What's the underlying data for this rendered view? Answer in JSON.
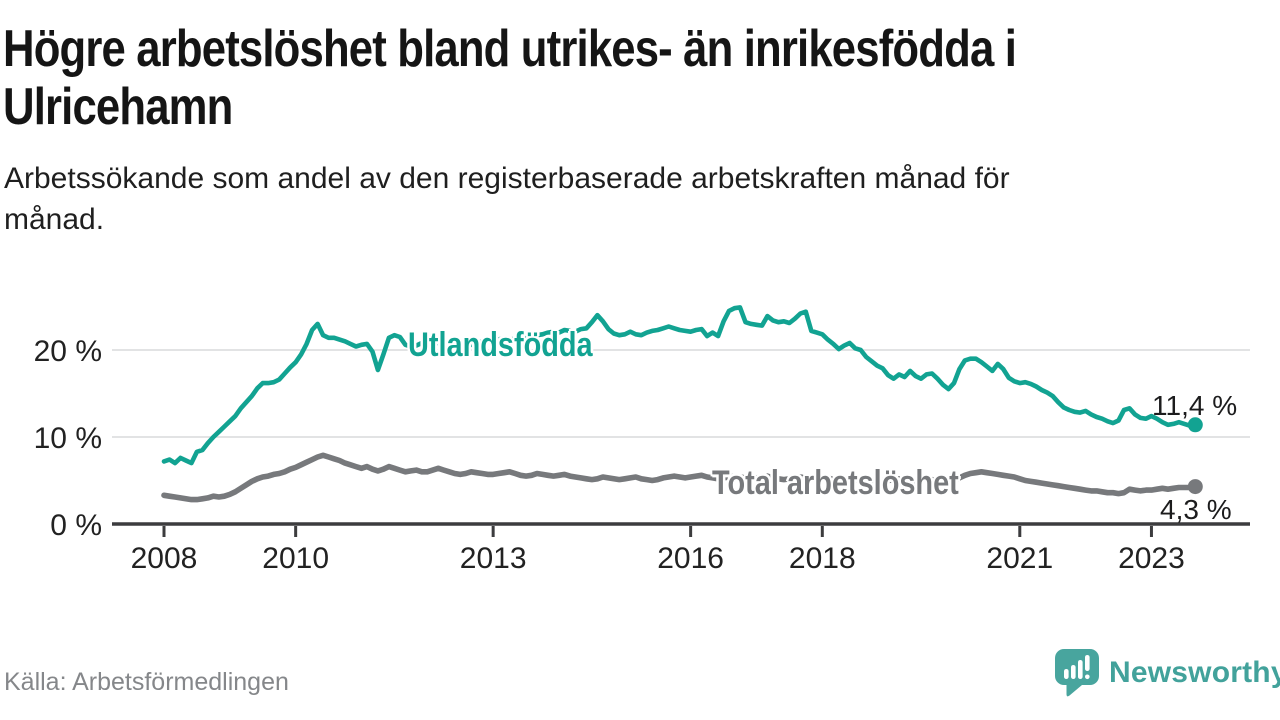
{
  "header": {
    "title_line1": "Högre arbetslöshet bland utrikes- än inrikesfödda i",
    "title_line2": "Ulricehamn",
    "subtitle_line1": "Arbetssökande som andel av den registerbaserade arbetskraften månad för",
    "subtitle_line2": "månad."
  },
  "footer": {
    "source": "Källa: Arbetsförmedlingen",
    "brand_name": "Newsworthy"
  },
  "colors": {
    "accent_teal": "#12a392",
    "series_gray": "#77797c",
    "grid": "#d9dadb",
    "axis": "#3c3c3e",
    "text_dark": "#1c1c1d",
    "brand_teal": "#42a29b",
    "source_gray": "#85878a"
  },
  "chart_data": {
    "type": "line",
    "x_unit": "month",
    "x_start": {
      "year": 2008,
      "month": 1
    },
    "x_end": {
      "year": 2023,
      "month": 9
    },
    "x_ticks": [
      {
        "year": 2008,
        "label": "2008"
      },
      {
        "year": 2010,
        "label": "2010"
      },
      {
        "year": 2013,
        "label": "2013"
      },
      {
        "year": 2016,
        "label": "2016"
      },
      {
        "year": 2018,
        "label": "2018"
      },
      {
        "year": 2021,
        "label": "2021"
      },
      {
        "year": 2023,
        "label": "2023"
      }
    ],
    "y_ticks": [
      {
        "value": 0,
        "label": "0 %"
      },
      {
        "value": 10,
        "label": "10 %"
      },
      {
        "value": 20,
        "label": "20 %"
      }
    ],
    "ylim": [
      0,
      27
    ],
    "grid": "horizontal",
    "legend_position": "inline-labels",
    "series": [
      {
        "name": "Utlandsfödda",
        "color": "#12a392",
        "end_label": "11,4 %",
        "end_value": 11.4,
        "values": [
          7.2,
          7.4,
          7.0,
          7.6,
          7.3,
          7.0,
          8.3,
          8.5,
          9.3,
          10.0,
          10.6,
          11.2,
          11.8,
          12.4,
          13.3,
          14.0,
          14.7,
          15.6,
          16.2,
          16.2,
          16.3,
          16.6,
          17.3,
          18.0,
          18.6,
          19.5,
          20.7,
          22.3,
          23.0,
          21.7,
          21.4,
          21.4,
          21.2,
          21.0,
          20.7,
          20.4,
          20.6,
          20.7,
          19.8,
          17.7,
          19.5,
          21.4,
          21.7,
          21.5,
          20.6,
          20.4,
          20.5,
          20.8,
          21.2,
          21.0,
          20.8,
          20.6,
          20.9,
          21.2,
          21.0,
          20.7,
          20.6,
          20.8,
          21.0,
          21.1,
          20.9,
          21.2,
          21.4,
          21.2,
          21.3,
          21.6,
          21.4,
          21.5,
          21.7,
          21.8,
          22.0,
          22.1,
          22.0,
          22.3,
          22.2,
          22.1,
          22.4,
          22.5,
          23.2,
          24.0,
          23.3,
          22.4,
          21.9,
          21.7,
          21.8,
          22.1,
          21.8,
          21.7,
          22.0,
          22.2,
          22.3,
          22.5,
          22.7,
          22.5,
          22.3,
          22.2,
          22.1,
          22.3,
          22.4,
          21.6,
          22.0,
          21.6,
          23.3,
          24.5,
          24.8,
          24.9,
          23.2,
          23.0,
          22.9,
          22.8,
          23.9,
          23.4,
          23.2,
          23.3,
          23.1,
          23.6,
          24.2,
          24.4,
          22.2,
          22.0,
          21.8,
          21.2,
          20.7,
          20.1,
          20.5,
          20.8,
          20.2,
          20.0,
          19.2,
          18.7,
          18.2,
          17.9,
          17.1,
          16.7,
          17.2,
          16.9,
          17.6,
          17.0,
          16.7,
          17.2,
          17.3,
          16.7,
          16.0,
          15.5,
          16.2,
          17.8,
          18.8,
          19.0,
          19.0,
          18.6,
          18.1,
          17.6,
          18.4,
          17.8,
          16.8,
          16.4,
          16.2,
          16.3,
          16.1,
          15.8,
          15.4,
          15.1,
          14.7,
          14.0,
          13.4,
          13.1,
          12.9,
          12.8,
          13.0,
          12.6,
          12.3,
          12.1,
          11.8,
          11.6,
          11.9,
          13.1,
          13.3,
          12.6,
          12.2,
          12.1,
          12.4,
          12.1,
          11.7,
          11.4,
          11.5,
          11.7,
          11.5,
          11.3,
          11.4
        ]
      },
      {
        "name": "Total arbetslöshet",
        "color": "#77797c",
        "end_label": "4,3 %",
        "end_value": 4.3,
        "values": [
          3.3,
          3.2,
          3.1,
          3.0,
          2.9,
          2.8,
          2.8,
          2.9,
          3.0,
          3.2,
          3.1,
          3.2,
          3.4,
          3.7,
          4.1,
          4.5,
          4.9,
          5.2,
          5.4,
          5.5,
          5.7,
          5.8,
          6.0,
          6.3,
          6.5,
          6.8,
          7.1,
          7.4,
          7.7,
          7.9,
          7.7,
          7.5,
          7.3,
          7.0,
          6.8,
          6.6,
          6.4,
          6.6,
          6.3,
          6.1,
          6.3,
          6.6,
          6.4,
          6.2,
          6.0,
          6.1,
          6.2,
          6.0,
          6.0,
          6.2,
          6.4,
          6.2,
          6.0,
          5.8,
          5.7,
          5.8,
          6.0,
          5.9,
          5.8,
          5.7,
          5.7,
          5.8,
          5.9,
          6.0,
          5.8,
          5.6,
          5.5,
          5.6,
          5.8,
          5.7,
          5.6,
          5.5,
          5.6,
          5.7,
          5.5,
          5.4,
          5.3,
          5.2,
          5.1,
          5.2,
          5.4,
          5.3,
          5.2,
          5.1,
          5.2,
          5.3,
          5.4,
          5.2,
          5.1,
          5.0,
          5.1,
          5.3,
          5.4,
          5.5,
          5.4,
          5.3,
          5.4,
          5.5,
          5.6,
          5.4,
          5.3,
          5.2,
          5.3,
          5.4,
          5.5,
          5.4,
          5.3,
          5.2,
          5.3,
          5.4,
          5.5,
          5.3,
          5.2,
          5.1,
          5.2,
          5.3,
          5.4,
          5.3,
          5.2,
          5.1,
          5.2,
          5.3,
          5.1,
          5.0,
          4.9,
          5.0,
          5.1,
          5.0,
          4.9,
          5.0,
          5.1,
          5.0,
          5.0,
          5.1,
          5.2,
          5.0,
          4.9,
          5.0,
          5.1,
          5.2,
          5.1,
          5.0,
          4.9,
          5.0,
          5.1,
          5.3,
          5.6,
          5.8,
          5.9,
          6.0,
          5.9,
          5.8,
          5.7,
          5.6,
          5.5,
          5.4,
          5.2,
          5.0,
          4.9,
          4.8,
          4.7,
          4.6,
          4.5,
          4.4,
          4.3,
          4.2,
          4.1,
          4.0,
          3.9,
          3.8,
          3.8,
          3.7,
          3.6,
          3.6,
          3.5,
          3.6,
          4.0,
          3.9,
          3.8,
          3.9,
          3.9,
          4.0,
          4.1,
          4.0,
          4.1,
          4.2,
          4.2,
          4.2,
          4.3
        ]
      }
    ]
  }
}
